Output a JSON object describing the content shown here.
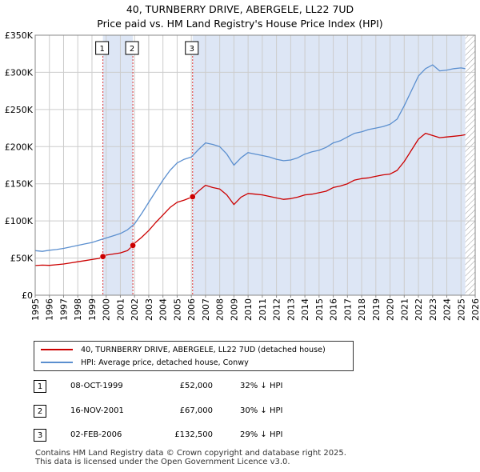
{
  "title": "40, TURNBERRY DRIVE, ABERGELE, LL22 7UD",
  "subtitle": "Price paid vs. HM Land Registry's House Price Index (HPI)",
  "colors": {
    "property": "#cc0000",
    "hpi": "#5b8fcf",
    "shade": "#dde6f5",
    "marker_line": "#dd3333",
    "grid": "#cccccc"
  },
  "chart_data": {
    "type": "line",
    "x_range": [
      1995,
      2026
    ],
    "ylim": [
      0,
      350000
    ],
    "y_ticks": [
      {
        "value": 0,
        "label": "£0"
      },
      {
        "value": 50000,
        "label": "£50K"
      },
      {
        "value": 100000,
        "label": "£100K"
      },
      {
        "value": 150000,
        "label": "£150K"
      },
      {
        "value": 200000,
        "label": "£200K"
      },
      {
        "value": 250000,
        "label": "£250K"
      },
      {
        "value": 300000,
        "label": "£300K"
      },
      {
        "value": 350000,
        "label": "£350K"
      }
    ],
    "x_ticks": [
      "1995",
      "1996",
      "1997",
      "1998",
      "1999",
      "2000",
      "2001",
      "2002",
      "2003",
      "2004",
      "2005",
      "2006",
      "2007",
      "2008",
      "2009",
      "2010",
      "2011",
      "2012",
      "2013",
      "2014",
      "2015",
      "2016",
      "2017",
      "2018",
      "2019",
      "2020",
      "2021",
      "2022",
      "2023",
      "2024",
      "2025",
      "2026"
    ],
    "grid": true,
    "hatch_after": 2025.3,
    "series": [
      {
        "name": "40, TURNBERRY DRIVE, ABERGELE, LL22 7UD (detached house)",
        "color": "#cc0000",
        "x": [
          1995.0,
          1995.5,
          1996.0,
          1996.5,
          1997.0,
          1997.5,
          1998.0,
          1998.5,
          1999.0,
          1999.5,
          1999.77,
          2000.0,
          2000.5,
          2001.0,
          2001.5,
          2001.88,
          2002.0,
          2002.5,
          2003.0,
          2003.5,
          2004.0,
          2004.5,
          2005.0,
          2005.5,
          2006.09,
          2006.5,
          2007.0,
          2007.5,
          2008.0,
          2008.5,
          2009.0,
          2009.5,
          2010.0,
          2010.5,
          2011.0,
          2011.5,
          2012.0,
          2012.5,
          2013.0,
          2013.5,
          2014.0,
          2014.5,
          2015.0,
          2015.5,
          2016.0,
          2016.5,
          2017.0,
          2017.5,
          2018.0,
          2018.5,
          2019.0,
          2019.5,
          2020.0,
          2020.5,
          2021.0,
          2021.5,
          2022.0,
          2022.5,
          2023.0,
          2023.5,
          2024.0,
          2024.5,
          2025.0,
          2025.3
        ],
        "values": [
          40000,
          40500,
          40200,
          41000,
          42000,
          43500,
          45000,
          46500,
          48000,
          49500,
          52000,
          54000,
          55500,
          57000,
          60000,
          67000,
          70000,
          78000,
          87000,
          98000,
          108000,
          118000,
          125000,
          128000,
          132500,
          140000,
          148000,
          145000,
          143000,
          135000,
          122000,
          132000,
          137000,
          136000,
          135000,
          133000,
          131000,
          129000,
          130000,
          132000,
          135000,
          136000,
          138000,
          140000,
          145000,
          147000,
          150000,
          155000,
          157000,
          158000,
          160000,
          162000,
          163000,
          168000,
          180000,
          195000,
          210000,
          218000,
          215000,
          212000,
          213000,
          214000,
          215000,
          216000
        ]
      },
      {
        "name": "HPI: Average price, detached house, Conwy",
        "color": "#5b8fcf",
        "x": [
          1995.0,
          1995.5,
          1996.0,
          1996.5,
          1997.0,
          1997.5,
          1998.0,
          1998.5,
          1999.0,
          1999.5,
          2000.0,
          2000.5,
          2001.0,
          2001.5,
          2002.0,
          2002.5,
          2003.0,
          2003.5,
          2004.0,
          2004.5,
          2005.0,
          2005.5,
          2006.0,
          2006.5,
          2007.0,
          2007.5,
          2008.0,
          2008.5,
          2009.0,
          2009.5,
          2010.0,
          2010.5,
          2011.0,
          2011.5,
          2012.0,
          2012.5,
          2013.0,
          2013.5,
          2014.0,
          2014.5,
          2015.0,
          2015.5,
          2016.0,
          2016.5,
          2017.0,
          2017.5,
          2018.0,
          2018.5,
          2019.0,
          2019.5,
          2020.0,
          2020.5,
          2021.0,
          2021.5,
          2022.0,
          2022.5,
          2023.0,
          2023.5,
          2024.0,
          2024.5,
          2025.0,
          2025.3
        ],
        "values": [
          60000,
          59000,
          60500,
          61500,
          63000,
          65000,
          67000,
          69000,
          71000,
          74000,
          77000,
          80000,
          83000,
          88000,
          96000,
          110000,
          125000,
          140000,
          155000,
          168000,
          178000,
          183000,
          186000,
          196000,
          205000,
          203000,
          200000,
          190000,
          175000,
          185000,
          192000,
          190000,
          188000,
          186000,
          183000,
          181000,
          182000,
          185000,
          190000,
          193000,
          195000,
          199000,
          205000,
          208000,
          213000,
          218000,
          220000,
          223000,
          225000,
          227000,
          230000,
          237000,
          255000,
          275000,
          295000,
          305000,
          310000,
          302000,
          303000,
          305000,
          306000,
          305000
        ]
      }
    ],
    "sales": [
      {
        "label": "1",
        "x": 1999.77,
        "value": 52000
      },
      {
        "label": "2",
        "x": 2001.88,
        "value": 67000
      },
      {
        "label": "3",
        "x": 2006.09,
        "value": 132500
      }
    ]
  },
  "legend": [
    {
      "label": "40, TURNBERRY DRIVE, ABERGELE, LL22 7UD (detached house)",
      "color": "#cc0000"
    },
    {
      "label": "HPI: Average price, detached house, Conwy",
      "color": "#5b8fcf"
    }
  ],
  "sales_table": [
    {
      "num": "1",
      "date": "08-OCT-1999",
      "price": "£52,000",
      "hpi": "32% ↓ HPI"
    },
    {
      "num": "2",
      "date": "16-NOV-2001",
      "price": "£67,000",
      "hpi": "30% ↓ HPI"
    },
    {
      "num": "3",
      "date": "02-FEB-2006",
      "price": "£132,500",
      "hpi": "29% ↓ HPI"
    }
  ],
  "footer": {
    "line1": "Contains HM Land Registry data © Crown copyright and database right 2025.",
    "line2": "This data is licensed under the Open Government Licence v3.0."
  }
}
